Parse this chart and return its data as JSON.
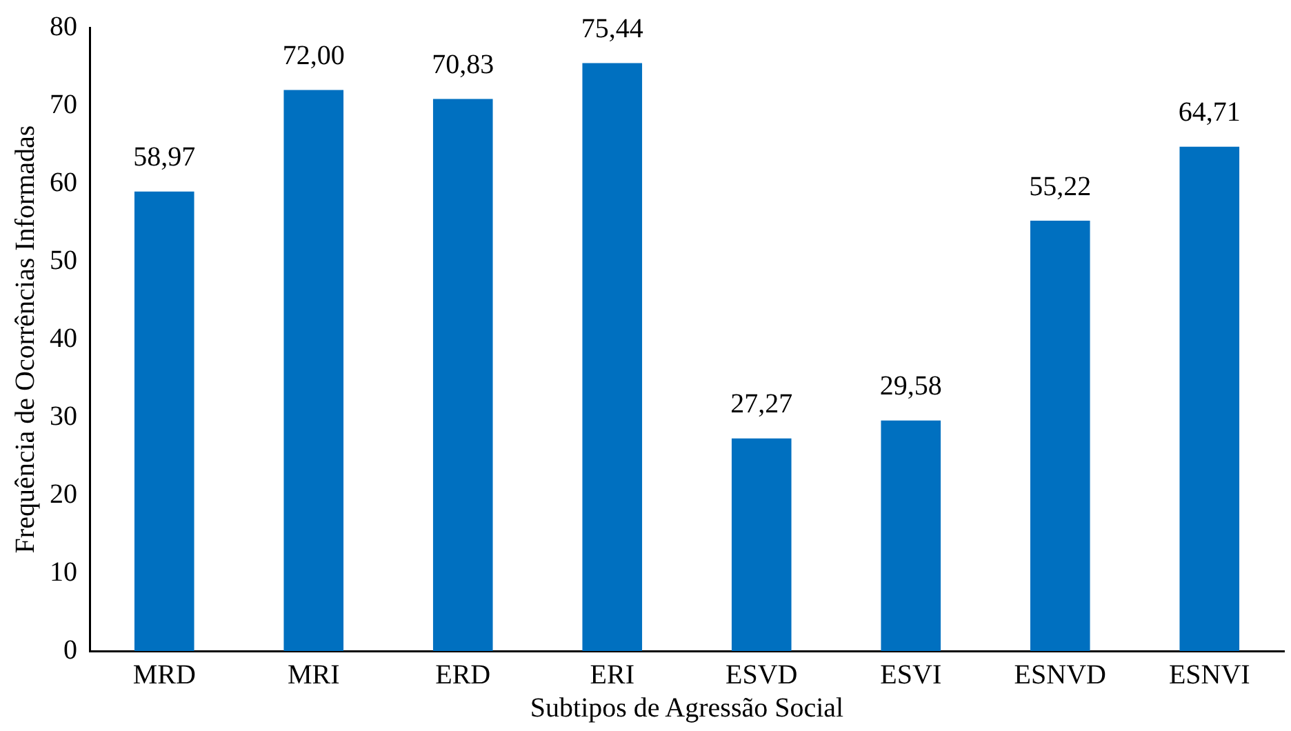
{
  "chart_data": {
    "type": "bar",
    "xlabel": "Subtipos de Agressão Social",
    "ylabel": "Frequência de Ocorrências Informadas",
    "categories": [
      "MRD",
      "MRI",
      "ERD",
      "ERI",
      "ESVD",
      "ESVI",
      "ESNVD",
      "ESNVI"
    ],
    "values": [
      58.97,
      72.0,
      70.83,
      75.44,
      27.27,
      29.58,
      55.22,
      64.71
    ],
    "value_labels": [
      "58,97",
      "72,00",
      "70,83",
      "75,44",
      "27,27",
      "29,58",
      "55,22",
      "64,71"
    ],
    "color": "#0070c0",
    "ylim": [
      0,
      80
    ],
    "yticks": [
      0,
      10,
      20,
      30,
      40,
      50,
      60,
      70,
      80
    ],
    "grid": false,
    "legend": false
  }
}
